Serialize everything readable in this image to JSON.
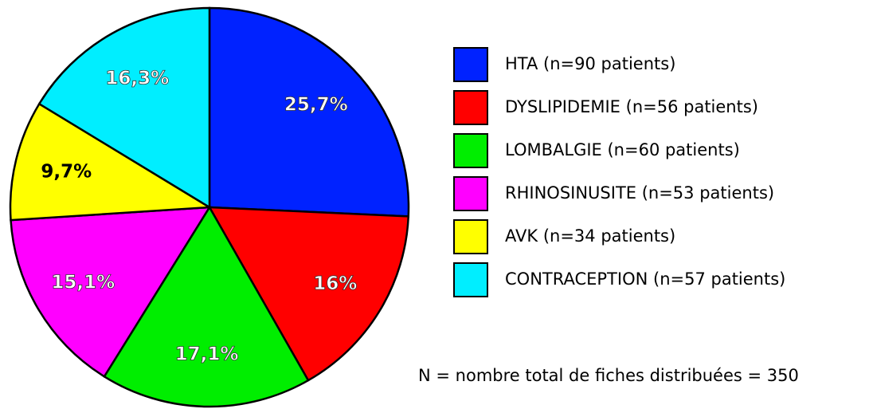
{
  "chart_data": {
    "type": "pie",
    "categories": [
      "HTA (n=90 patients)",
      "DYSLIPIDEMIE (n=56 patients)",
      "LOMBALGIE (n=60 patients)",
      "RHINOSINUSITE (n=53 patients)",
      "AVK (n=34 patients)",
      "CONTRACEPTION (n=57 patients)"
    ],
    "values": [
      25.7,
      16,
      17.1,
      15.1,
      9.7,
      16.3
    ],
    "value_labels": [
      "25,7%",
      "16%",
      "17,1%",
      "15,1%",
      "9,7%",
      "16,3%"
    ],
    "colors": [
      "#0022ff",
      "#ff0000",
      "#00ee00",
      "#ff00ff",
      "#ffff00",
      "#00eeff"
    ],
    "label_colors": [
      "#ffffff",
      "#ffffff",
      "#ffffff",
      "#ffffff",
      "#000000",
      "#ffffff"
    ],
    "note": "N = nombre total de fiches distribuées = 350"
  }
}
